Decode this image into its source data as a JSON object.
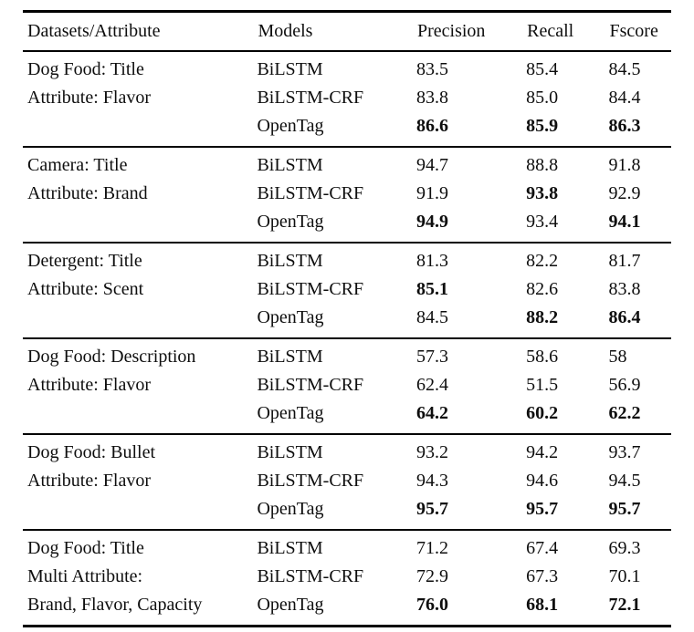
{
  "table": {
    "colors": {
      "text": "#0e0e0e",
      "rule": "#000000",
      "background": "#ffffff"
    },
    "headers": {
      "dataset": "Datasets/Attribute",
      "model": "Models",
      "precision": "Precision",
      "recall": "Recall",
      "fscore": "Fscore"
    },
    "groups": [
      {
        "rows": [
          {
            "dataset": "Dog Food: Title",
            "model": "BiLSTM",
            "precision": {
              "v": "83.5",
              "b": false
            },
            "recall": {
              "v": "85.4",
              "b": false
            },
            "fscore": {
              "v": "84.5",
              "b": false
            }
          },
          {
            "dataset": "Attribute: Flavor",
            "model": "BiLSTM-CRF",
            "precision": {
              "v": "83.8",
              "b": false
            },
            "recall": {
              "v": "85.0",
              "b": false
            },
            "fscore": {
              "v": "84.4",
              "b": false
            }
          },
          {
            "dataset": "",
            "model": "OpenTag",
            "precision": {
              "v": "86.6",
              "b": true
            },
            "recall": {
              "v": "85.9",
              "b": true
            },
            "fscore": {
              "v": "86.3",
              "b": true
            }
          }
        ]
      },
      {
        "rows": [
          {
            "dataset": "Camera: Title",
            "model": "BiLSTM",
            "precision": {
              "v": "94.7",
              "b": false
            },
            "recall": {
              "v": "88.8",
              "b": false
            },
            "fscore": {
              "v": "91.8",
              "b": false
            }
          },
          {
            "dataset": "Attribute: Brand",
            "model": "BiLSTM-CRF",
            "precision": {
              "v": "91.9",
              "b": false
            },
            "recall": {
              "v": "93.8",
              "b": true
            },
            "fscore": {
              "v": "92.9",
              "b": false
            }
          },
          {
            "dataset": "",
            "model": "OpenTag",
            "precision": {
              "v": "94.9",
              "b": true
            },
            "recall": {
              "v": "93.4",
              "b": false
            },
            "fscore": {
              "v": "94.1",
              "b": true
            }
          }
        ]
      },
      {
        "rows": [
          {
            "dataset": "Detergent: Title",
            "model": "BiLSTM",
            "precision": {
              "v": "81.3",
              "b": false
            },
            "recall": {
              "v": "82.2",
              "b": false
            },
            "fscore": {
              "v": "81.7",
              "b": false
            }
          },
          {
            "dataset": "Attribute: Scent",
            "model": "BiLSTM-CRF",
            "precision": {
              "v": "85.1",
              "b": true
            },
            "recall": {
              "v": "82.6",
              "b": false
            },
            "fscore": {
              "v": "83.8",
              "b": false
            }
          },
          {
            "dataset": "",
            "model": "OpenTag",
            "precision": {
              "v": "84.5",
              "b": false
            },
            "recall": {
              "v": "88.2",
              "b": true
            },
            "fscore": {
              "v": "86.4",
              "b": true
            }
          }
        ]
      },
      {
        "rows": [
          {
            "dataset": "Dog Food: Description",
            "model": "BiLSTM",
            "precision": {
              "v": "57.3",
              "b": false
            },
            "recall": {
              "v": "58.6",
              "b": false
            },
            "fscore": {
              "v": "58",
              "b": false
            }
          },
          {
            "dataset": "Attribute: Flavor",
            "model": "BiLSTM-CRF",
            "precision": {
              "v": "62.4",
              "b": false
            },
            "recall": {
              "v": "51.5",
              "b": false
            },
            "fscore": {
              "v": "56.9",
              "b": false
            }
          },
          {
            "dataset": "",
            "model": "OpenTag",
            "precision": {
              "v": "64.2",
              "b": true
            },
            "recall": {
              "v": "60.2",
              "b": true
            },
            "fscore": {
              "v": "62.2",
              "b": true
            }
          }
        ]
      },
      {
        "rows": [
          {
            "dataset": "Dog Food: Bullet",
            "model": "BiLSTM",
            "precision": {
              "v": "93.2",
              "b": false
            },
            "recall": {
              "v": "94.2",
              "b": false
            },
            "fscore": {
              "v": "93.7",
              "b": false
            }
          },
          {
            "dataset": "Attribute: Flavor",
            "model": "BiLSTM-CRF",
            "precision": {
              "v": "94.3",
              "b": false
            },
            "recall": {
              "v": "94.6",
              "b": false
            },
            "fscore": {
              "v": "94.5",
              "b": false
            }
          },
          {
            "dataset": "",
            "model": "OpenTag",
            "precision": {
              "v": "95.7",
              "b": true
            },
            "recall": {
              "v": "95.7",
              "b": true
            },
            "fscore": {
              "v": "95.7",
              "b": true
            }
          }
        ]
      },
      {
        "rows": [
          {
            "dataset": "Dog Food: Title",
            "model": "BiLSTM",
            "precision": {
              "v": "71.2",
              "b": false
            },
            "recall": {
              "v": "67.4",
              "b": false
            },
            "fscore": {
              "v": "69.3",
              "b": false
            }
          },
          {
            "dataset": "Multi Attribute:",
            "model": "BiLSTM-CRF",
            "precision": {
              "v": "72.9",
              "b": false
            },
            "recall": {
              "v": "67.3",
              "b": false
            },
            "fscore": {
              "v": "70.1",
              "b": false
            }
          },
          {
            "dataset": "Brand, Flavor, Capacity",
            "model": "OpenTag",
            "precision": {
              "v": "76.0",
              "b": true
            },
            "recall": {
              "v": "68.1",
              "b": true
            },
            "fscore": {
              "v": "72.1",
              "b": true
            }
          }
        ]
      }
    ]
  }
}
